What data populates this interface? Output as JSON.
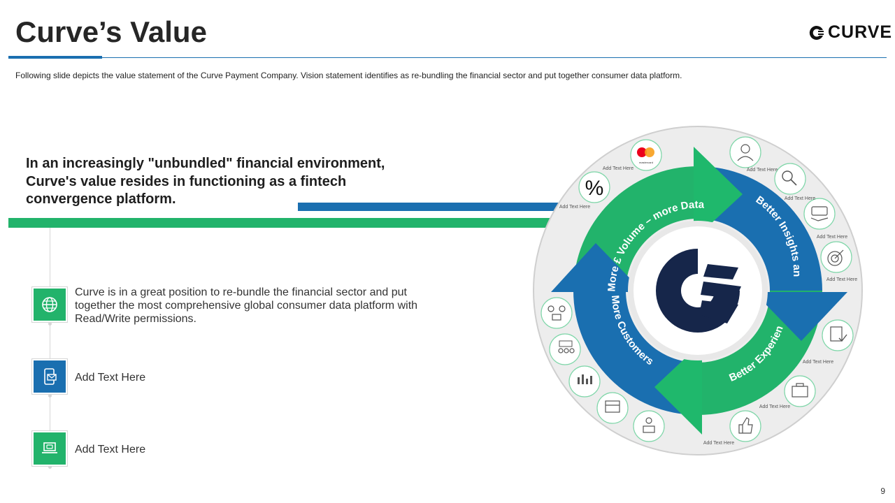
{
  "slide": {
    "title": "Curve’s Value",
    "logo_text": "CURVE",
    "subtitle": "Following slide depicts the value  statement of the Curve  Payment Company.  Vision statement identifies  as re-bundling  the financial sector  and put together  consumer data platform.",
    "headline": "In an increasingly \"unbundled\" financial environment, Curve's value resides in functioning as a fintech convergence platform.",
    "page_number": "9"
  },
  "features": [
    {
      "icon": "globe-icon",
      "text": "Curve is in a great position to re-bundle the financial sector and put together the most comprehensive global consumer data platform with Read/Write permissions."
    },
    {
      "icon": "mobile-mail-icon",
      "text": "Add Text Here"
    },
    {
      "icon": "laptop-chat-icon",
      "text": "Add Text Here"
    }
  ],
  "cycle": {
    "segments": [
      {
        "label": "More £ Volume – more Data and Lower Price"
      },
      {
        "label": "Better Insights and Analytics"
      },
      {
        "label": "Better Experience"
      },
      {
        "label": "More Customers; More Partners"
      }
    ],
    "ring_labels": [
      "Add Text Here",
      "Add Text Here",
      "Add Text Here",
      "Add Text Here",
      "Add Text Here",
      "Add Text Here",
      "Add Text Here",
      "Add Text Here",
      "Add Text Here",
      "Add Text Here"
    ],
    "percent_symbol": "%",
    "mastercard_text": "mastercard"
  },
  "colors": {
    "blue": "#1a6fb0",
    "green": "#22b36b",
    "navy": "#16264a",
    "ring": "#ededed"
  }
}
